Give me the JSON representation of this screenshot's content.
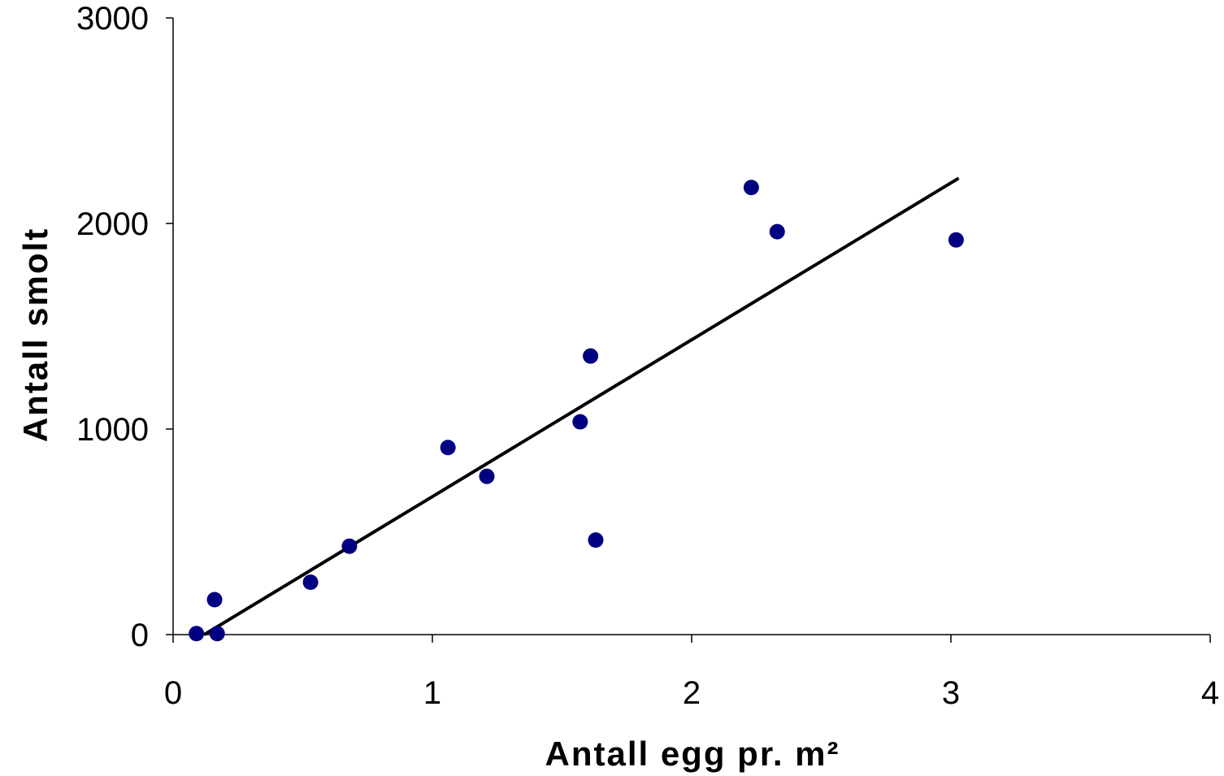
{
  "chart_data": {
    "type": "scatter",
    "title": "",
    "xlabel": "Antall egg pr. m²",
    "ylabel": "Antall smolt",
    "xlim": [
      0,
      4
    ],
    "ylim": [
      0,
      3000
    ],
    "x_ticks": [
      "0",
      "1",
      "2",
      "3",
      "4"
    ],
    "y_ticks": [
      "0",
      "1000",
      "2000",
      "3000"
    ],
    "grid": false,
    "legend": "none",
    "series": [
      {
        "points": [
          {
            "x": 0.09,
            "y": 5
          },
          {
            "x": 0.16,
            "y": 170
          },
          {
            "x": 0.17,
            "y": 5
          },
          {
            "x": 0.53,
            "y": 255
          },
          {
            "x": 0.68,
            "y": 430
          },
          {
            "x": 1.06,
            "y": 910
          },
          {
            "x": 1.21,
            "y": 770
          },
          {
            "x": 1.57,
            "y": 1035
          },
          {
            "x": 1.61,
            "y": 1355
          },
          {
            "x": 1.63,
            "y": 460
          },
          {
            "x": 2.23,
            "y": 2175
          },
          {
            "x": 2.33,
            "y": 1960
          },
          {
            "x": 3.02,
            "y": 1920
          }
        ],
        "color": "#000080"
      }
    ],
    "trendline": {
      "type": "linear",
      "from": {
        "x": 0.12,
        "y": 0
      },
      "to": {
        "x": 3.03,
        "y": 2220
      },
      "color": "#000000"
    }
  }
}
